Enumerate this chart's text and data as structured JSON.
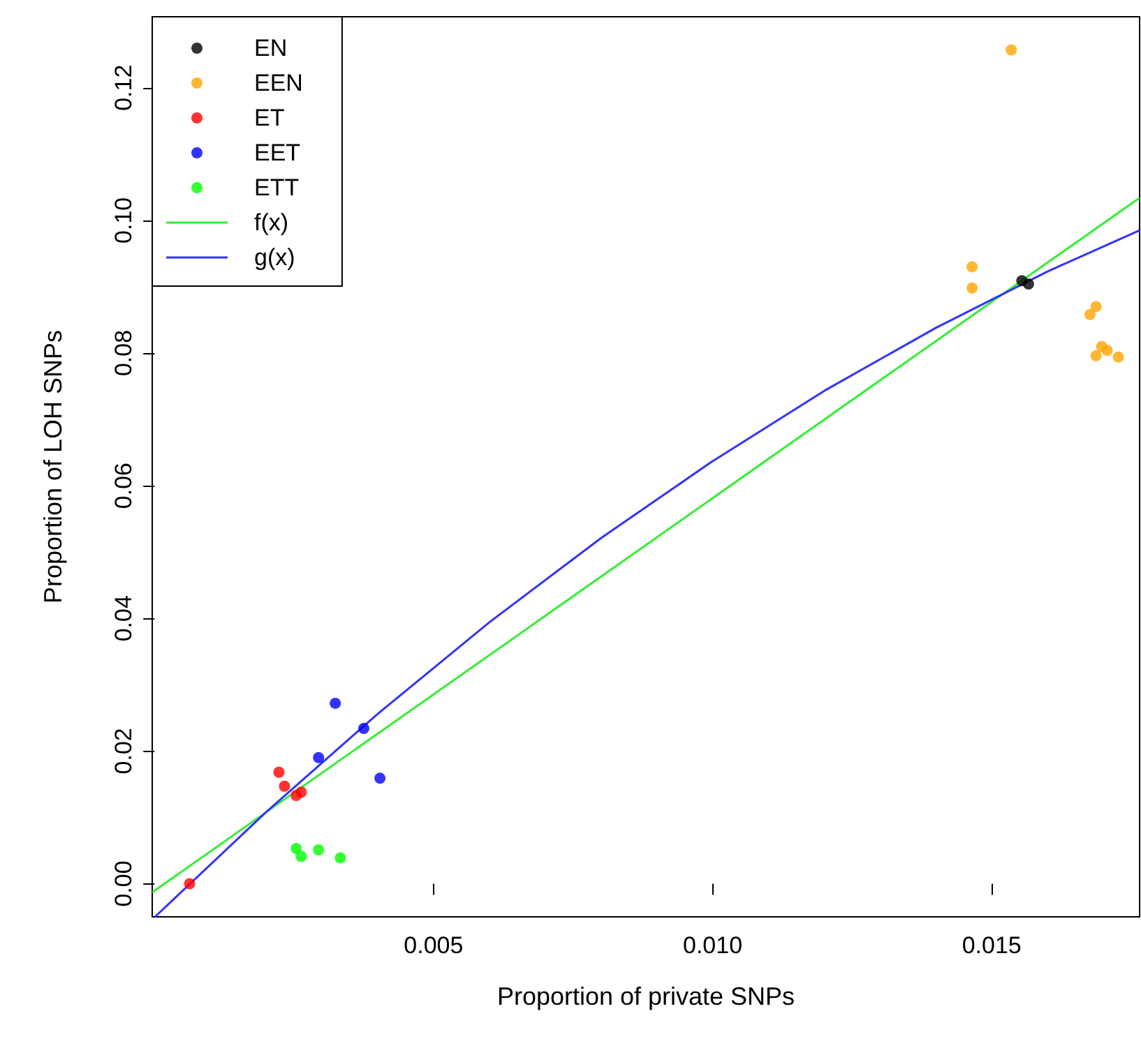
{
  "chart_data": {
    "type": "scatter",
    "xlabel": "Proportion of private SNPs",
    "ylabel": "Proportion of LOH SNPs",
    "xlim": [
      -4e-05,
      0.01765
    ],
    "ylim": [
      -0.005,
      0.1307
    ],
    "xticks": [
      {
        "value": 0.005,
        "label": "0.005"
      },
      {
        "value": 0.01,
        "label": "0.010"
      },
      {
        "value": 0.015,
        "label": "0.015"
      }
    ],
    "yticks": [
      {
        "value": 0,
        "label": "0.00"
      },
      {
        "value": 0.02,
        "label": "0.02"
      },
      {
        "value": 0.04,
        "label": "0.04"
      },
      {
        "value": 0.06,
        "label": "0.06"
      },
      {
        "value": 0.08,
        "label": "0.08"
      },
      {
        "value": 0.1,
        "label": "0.10"
      },
      {
        "value": 0.12,
        "label": "0.12"
      }
    ],
    "grid": false,
    "legend": "top left",
    "marker": "circle",
    "series": [
      {
        "name": "EN",
        "color": "#000000",
        "x": [
          0.01554,
          0.01566
        ],
        "values": [
          0.0909,
          0.0904
        ]
      },
      {
        "name": "EEN",
        "color": "#ffa500",
        "x": [
          0.01535,
          0.01465,
          0.01465,
          0.01687,
          0.01676,
          0.01697,
          0.01687,
          0.01707,
          0.01727
        ],
        "values": [
          0.1257,
          0.093,
          0.0898,
          0.087,
          0.0858,
          0.081,
          0.0796,
          0.0804,
          0.0794
        ]
      },
      {
        "name": "ET",
        "color": "#ff0000",
        "x": [
          0.00063,
          0.00223,
          0.00233,
          0.00254,
          0.00263
        ],
        "values": [
          0.0,
          0.0168,
          0.0147,
          0.0133,
          0.0138
        ]
      },
      {
        "name": "EET",
        "color": "#0000ff",
        "x": [
          0.00324,
          0.00375,
          0.00294,
          0.00404
        ],
        "values": [
          0.0272,
          0.0234,
          0.019,
          0.0159
        ]
      },
      {
        "name": "ETT",
        "color": "#00ff00",
        "x": [
          0.00254,
          0.00263,
          0.00294,
          0.00333
        ],
        "values": [
          0.0053,
          0.0041,
          0.0051,
          0.0039
        ]
      },
      {
        "name": "f(x)",
        "type": "line",
        "color": "#33ee33",
        "marker": "none",
        "line_style": "solid",
        "x": [
          -4e-05,
          0.01765
        ],
        "values": [
          -0.0013,
          0.1034
        ]
      },
      {
        "name": "g(x)",
        "type": "line",
        "color": "#3333ff",
        "marker": "none",
        "line_style": "solid",
        "x": [
          1e-05,
          0.002,
          0.004,
          0.006,
          0.008,
          0.01,
          0.012,
          0.014,
          0.016,
          0.01765
        ],
        "values": [
          -0.005,
          0.0108,
          0.0256,
          0.0394,
          0.0521,
          0.0637,
          0.0743,
          0.0838,
          0.0923,
          0.0985
        ]
      }
    ]
  }
}
